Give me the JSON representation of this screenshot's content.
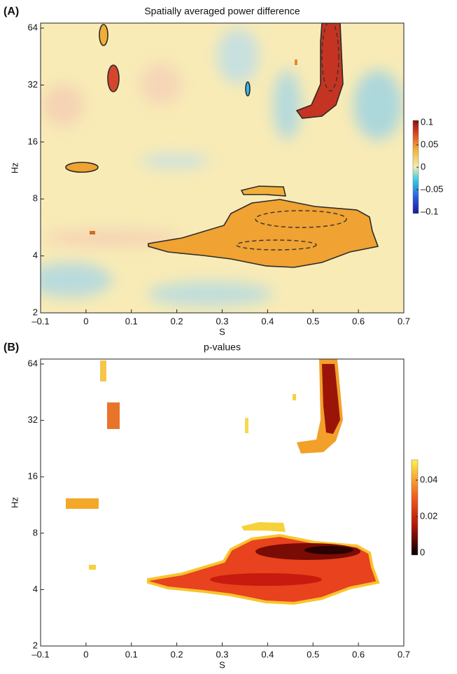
{
  "chart_data": [
    {
      "type": "heatmap",
      "panel_label": "(A)",
      "title": "Spatially averaged power difference",
      "xlabel": "S",
      "ylabel": "Hz",
      "xlim": [
        -0.1,
        0.7
      ],
      "xticks": [
        {
          "value": -0.1,
          "label": "–0.1"
        },
        0,
        0.1,
        0.2,
        0.3,
        0.4,
        0.5,
        0.6,
        0.7
      ],
      "ylim": [
        2,
        68
      ],
      "log_y": true,
      "yticks": [
        2,
        4,
        8,
        16,
        32,
        64
      ],
      "colorbar": {
        "colormap": "jet",
        "lim": [
          -0.1,
          0.1
        ],
        "ticks": [
          {
            "value": 0.1,
            "label": "0.1"
          },
          0.05,
          0,
          {
            "value": -0.05,
            "label": "–0.05"
          },
          {
            "value": -0.1,
            "label": "–0.1"
          }
        ]
      }
    },
    {
      "type": "heatmap",
      "panel_label": "(B)",
      "title": "p-values",
      "xlabel": "S",
      "ylabel": "Hz",
      "xlim": [
        -0.1,
        0.7
      ],
      "xticks": [
        {
          "value": -0.1,
          "label": "–0.1"
        },
        0,
        0.1,
        0.2,
        0.3,
        0.4,
        0.5,
        0.6,
        0.7
      ],
      "ylim": [
        2,
        68
      ],
      "log_y": true,
      "yticks": [
        2,
        4,
        8,
        16,
        32,
        64
      ],
      "colorbar": {
        "colormap": "hot",
        "lim": [
          0,
          0.05
        ],
        "ticks": [
          0.04,
          0.02,
          0
        ]
      }
    }
  ]
}
